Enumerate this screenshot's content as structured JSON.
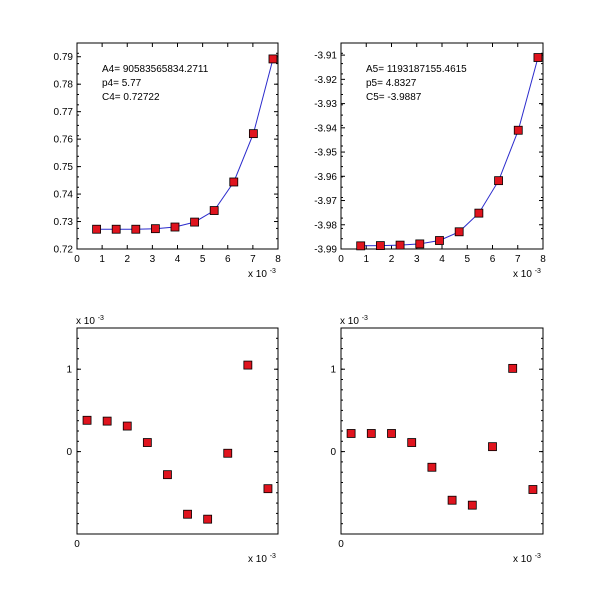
{
  "chart_data": [
    {
      "type": "scatter",
      "has_fit_line": true,
      "x": [
        0.78,
        1.56,
        2.34,
        3.12,
        3.9,
        4.68,
        5.46,
        6.24,
        7.02,
        7.8
      ],
      "y": [
        0.7272,
        0.7272,
        0.7272,
        0.7274,
        0.728,
        0.7298,
        0.734,
        0.7444,
        0.762,
        0.7892
      ],
      "x_ticks": [
        "0",
        "1",
        "2",
        "3",
        "4",
        "5",
        "6",
        "7",
        "8"
      ],
      "y_ticks": [
        "0.72",
        "0.73",
        "0.74",
        "0.75",
        "0.76",
        "0.77",
        "0.78",
        "0.79"
      ],
      "xlim": [
        0,
        8
      ],
      "ylim": [
        0.72,
        0.795
      ],
      "x_scale_label": "x 10",
      "x_scale_exp": "-3",
      "annotation": [
        "A4= 90583565834.2711",
        "p4= 5.77",
        "C4= 0.72722"
      ]
    },
    {
      "type": "scatter",
      "has_fit_line": true,
      "x": [
        0.78,
        1.56,
        2.34,
        3.12,
        3.9,
        4.68,
        5.46,
        6.24,
        7.02,
        7.8
      ],
      "y": [
        -3.9887,
        -3.9886,
        -3.9884,
        -3.9879,
        -3.9865,
        -3.9829,
        -3.9752,
        -3.9618,
        -3.941,
        -3.911
      ],
      "x_ticks": [
        "0",
        "1",
        "2",
        "3",
        "4",
        "5",
        "6",
        "7",
        "8"
      ],
      "y_ticks": [
        "-3.91",
        "-3.92",
        "-3.93",
        "-3.94",
        "-3.95",
        "-3.96",
        "-3.97",
        "-3.98",
        "-3.99"
      ],
      "xlim": [
        0,
        8
      ],
      "ylim": [
        -3.99,
        -3.905
      ],
      "x_scale_label": "x 10",
      "x_scale_exp": "-3",
      "annotation": [
        "A5= 1193187155.4615",
        "p5= 4.8327",
        "C5= -3.9887"
      ]
    },
    {
      "type": "scatter",
      "has_fit_line": false,
      "x": [
        0.5,
        1.5,
        2.5,
        3.5,
        4.5,
        5.5,
        6.5,
        7.5,
        8.5,
        9.5
      ],
      "y": [
        0.38,
        0.37,
        0.31,
        0.11,
        -0.28,
        -0.76,
        -0.82,
        -0.02,
        1.05,
        -0.45
      ],
      "y_ticks": [
        "1",
        "0"
      ],
      "y_tick_values": [
        1,
        0
      ],
      "x_ticks": [
        "0"
      ],
      "xlim": [
        0,
        10
      ],
      "ylim": [
        -1.0,
        1.5
      ],
      "x_scale_label": "x 10",
      "x_scale_exp": "-3",
      "y_scale_label": "x 10",
      "y_scale_exp": "-3"
    },
    {
      "type": "scatter",
      "has_fit_line": false,
      "x": [
        0.5,
        1.5,
        2.5,
        3.5,
        4.5,
        5.5,
        6.5,
        7.5,
        8.5,
        9.5
      ],
      "y": [
        0.22,
        0.22,
        0.22,
        0.11,
        -0.19,
        -0.59,
        -0.65,
        0.06,
        1.01,
        -0.46
      ],
      "y_ticks": [
        "1",
        "0"
      ],
      "y_tick_values": [
        1,
        0
      ],
      "x_ticks": [
        "0"
      ],
      "xlim": [
        0,
        10
      ],
      "ylim": [
        -1.0,
        1.5
      ],
      "x_scale_label": "x 10",
      "x_scale_exp": "-3",
      "y_scale_label": "x 10",
      "y_scale_exp": "-3"
    }
  ]
}
